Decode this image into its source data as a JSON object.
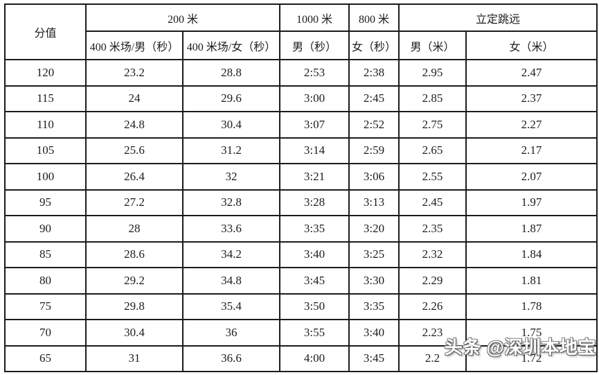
{
  "chart_data": {
    "type": "table",
    "header": {
      "score": "分值",
      "group_200m": "200 米",
      "col_400m_male": "400 米场/男（秒）",
      "col_400m_female": "400 米场/女（秒）",
      "group_1000m": "1000 米",
      "col_1000m_male": "男（秒）",
      "group_800m": "800 米",
      "col_800m_female": "女（秒）",
      "group_long_jump": "立定跳远",
      "col_jump_male": "男（米）",
      "col_jump_female": "女（米）"
    },
    "rows": [
      [
        "120",
        "23.2",
        "28.8",
        "2:53",
        "2:38",
        "2.95",
        "2.47"
      ],
      [
        "115",
        "24",
        "29.6",
        "3:00",
        "2:45",
        "2.85",
        "2.37"
      ],
      [
        "110",
        "24.8",
        "30.4",
        "3:07",
        "2:52",
        "2.75",
        "2.27"
      ],
      [
        "105",
        "25.6",
        "31.2",
        "3:14",
        "2:59",
        "2.65",
        "2.17"
      ],
      [
        "100",
        "26.4",
        "32",
        "3:21",
        "3:06",
        "2.55",
        "2.07"
      ],
      [
        "95",
        "27.2",
        "32.8",
        "3:28",
        "3:13",
        "2.45",
        "1.97"
      ],
      [
        "90",
        "28",
        "33.6",
        "3:35",
        "3:20",
        "2.35",
        "1.87"
      ],
      [
        "85",
        "28.6",
        "34.2",
        "3:40",
        "3:25",
        "2.32",
        "1.84"
      ],
      [
        "80",
        "29.2",
        "34.8",
        "3:45",
        "3:30",
        "2.29",
        "1.81"
      ],
      [
        "75",
        "29.8",
        "35.4",
        "3:50",
        "3:35",
        "2.26",
        "1.78"
      ],
      [
        "70",
        "30.4",
        "36",
        "3:55",
        "3:40",
        "2.23",
        "1.75"
      ],
      [
        "65",
        "31",
        "36.6",
        "4:00",
        "3:45",
        "2.2",
        "1.72"
      ]
    ]
  },
  "watermark": {
    "text": "头条 @深圳本地宝"
  },
  "colors": {
    "border": "#1b1b1b",
    "text": "#1c1c1c",
    "background": "#ffffff",
    "watermark_fill": "#ffffff",
    "watermark_outline": "#6f6f6f"
  }
}
